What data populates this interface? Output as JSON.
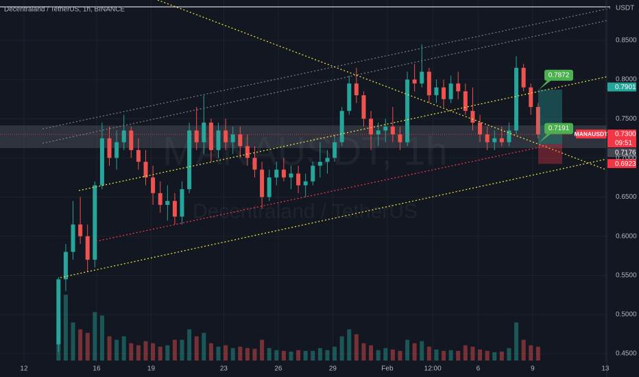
{
  "chart_data": {
    "type": "candlestick",
    "title": "Decentraland / TetherUS, 1h, BINANCE",
    "currency": "USDT",
    "watermark": {
      "symbol": "MANAUSDT, 1h",
      "description": "Decentraland / TetherUS"
    },
    "up_color": "#26a69a",
    "down_color": "#ef5350",
    "grid": true,
    "xlim": [
      10.68,
      44.08
    ],
    "xticks": [
      12,
      16,
      19,
      23,
      26,
      29,
      {
        "value": 32,
        "label": "Feb"
      },
      {
        "value": 34.5,
        "label": "12:00"
      },
      {
        "value": 37,
        "label": "6"
      },
      {
        "value": 40,
        "label": "9"
      },
      {
        "value": 44,
        "label": "13"
      }
    ],
    "ylim": [
      0.9016,
      0.4395
    ],
    "yticks": [
      {
        "value": 0.85,
        "label": "0.8500"
      },
      {
        "value": 0.8,
        "label": "0.8000"
      },
      {
        "value": 0.75,
        "label": "0.7500"
      },
      {
        "value": 0.7,
        "label": "0.7000"
      },
      {
        "value": 0.65,
        "label": "0.6500"
      },
      {
        "value": 0.6,
        "label": "0.6000"
      },
      {
        "value": 0.55,
        "label": "0.5500"
      },
      {
        "value": 0.5,
        "label": "0.5000"
      },
      {
        "value": 0.45,
        "label": "0.4500"
      }
    ],
    "x": [
      13.9,
      14.3,
      14.7,
      15.1,
      15.5,
      15.9,
      16.3,
      16.7,
      17.1,
      17.5,
      17.9,
      18.3,
      18.7,
      19.1,
      19.5,
      19.9,
      20.3,
      20.7,
      21.1,
      21.5,
      21.9,
      22.3,
      22.7,
      23.1,
      23.5,
      23.9,
      24.3,
      24.7,
      25.1,
      25.5,
      25.9,
      26.3,
      26.7,
      27.1,
      27.5,
      27.9,
      28.3,
      28.7,
      29.1,
      29.5,
      29.9,
      30.3,
      30.7,
      31.1,
      31.5,
      31.9,
      32.3,
      32.7,
      33.1,
      33.5,
      33.9,
      34.3,
      34.7,
      35.1,
      35.5,
      35.9,
      36.3,
      36.7,
      37.1,
      37.5,
      37.9,
      38.3,
      38.7,
      39.1,
      39.5,
      39.9,
      40.3
    ],
    "open": [
      0.462,
      0.545,
      0.58,
      0.615,
      0.6,
      0.57,
      0.665,
      0.725,
      0.7,
      0.72,
      0.735,
      0.71,
      0.695,
      0.675,
      0.655,
      0.64,
      0.645,
      0.625,
      0.66,
      0.735,
      0.72,
      0.745,
      0.71,
      0.735,
      0.72,
      0.73,
      0.715,
      0.7,
      0.685,
      0.65,
      0.675,
      0.685,
      0.675,
      0.68,
      0.665,
      0.67,
      0.69,
      0.695,
      0.7,
      0.72,
      0.76,
      0.795,
      0.78,
      0.75,
      0.73,
      0.735,
      0.74,
      0.73,
      0.72,
      0.8,
      0.795,
      0.81,
      0.78,
      0.79,
      0.775,
      0.795,
      0.785,
      0.76,
      0.745,
      0.73,
      0.72,
      0.725,
      0.72,
      0.735,
      0.815,
      0.79,
      0.765
    ],
    "high": [
      0.548,
      0.59,
      0.645,
      0.65,
      0.615,
      0.67,
      0.745,
      0.74,
      0.735,
      0.755,
      0.74,
      0.725,
      0.71,
      0.69,
      0.67,
      0.665,
      0.655,
      0.67,
      0.745,
      0.765,
      0.78,
      0.75,
      0.745,
      0.75,
      0.74,
      0.74,
      0.73,
      0.715,
      0.695,
      0.685,
      0.695,
      0.7,
      0.69,
      0.69,
      0.68,
      0.695,
      0.72,
      0.71,
      0.73,
      0.765,
      0.805,
      0.815,
      0.785,
      0.76,
      0.745,
      0.75,
      0.765,
      0.74,
      0.81,
      0.82,
      0.845,
      0.815,
      0.8,
      0.8,
      0.805,
      0.81,
      0.795,
      0.79,
      0.755,
      0.74,
      0.735,
      0.74,
      0.745,
      0.83,
      0.82,
      0.795,
      0.77
    ],
    "low": [
      0.452,
      0.53,
      0.57,
      0.59,
      0.555,
      0.56,
      0.66,
      0.69,
      0.685,
      0.71,
      0.7,
      0.685,
      0.665,
      0.64,
      0.63,
      0.62,
      0.615,
      0.615,
      0.655,
      0.71,
      0.705,
      0.695,
      0.7,
      0.71,
      0.705,
      0.7,
      0.69,
      0.675,
      0.635,
      0.645,
      0.665,
      0.67,
      0.66,
      0.655,
      0.65,
      0.665,
      0.675,
      0.68,
      0.695,
      0.715,
      0.755,
      0.77,
      0.74,
      0.71,
      0.715,
      0.72,
      0.72,
      0.71,
      0.715,
      0.785,
      0.79,
      0.77,
      0.77,
      0.765,
      0.77,
      0.775,
      0.755,
      0.735,
      0.72,
      0.71,
      0.71,
      0.715,
      0.715,
      0.73,
      0.785,
      0.755,
      0.725
    ],
    "close": [
      0.545,
      0.58,
      0.615,
      0.6,
      0.57,
      0.665,
      0.725,
      0.7,
      0.72,
      0.735,
      0.71,
      0.695,
      0.675,
      0.655,
      0.64,
      0.645,
      0.625,
      0.66,
      0.735,
      0.72,
      0.745,
      0.71,
      0.735,
      0.72,
      0.73,
      0.715,
      0.7,
      0.685,
      0.65,
      0.675,
      0.685,
      0.675,
      0.68,
      0.665,
      0.67,
      0.69,
      0.695,
      0.7,
      0.72,
      0.76,
      0.795,
      0.78,
      0.75,
      0.73,
      0.735,
      0.74,
      0.73,
      0.72,
      0.8,
      0.795,
      0.81,
      0.78,
      0.79,
      0.775,
      0.795,
      0.785,
      0.76,
      0.745,
      0.73,
      0.72,
      0.725,
      0.72,
      0.735,
      0.815,
      0.79,
      0.765,
      0.73
    ],
    "volume": [
      60,
      95,
      55,
      45,
      40,
      70,
      65,
      35,
      30,
      35,
      25,
      22,
      28,
      25,
      20,
      22,
      30,
      30,
      45,
      35,
      40,
      25,
      20,
      22,
      18,
      20,
      18,
      17,
      30,
      18,
      15,
      14,
      13,
      15,
      14,
      14,
      18,
      15,
      20,
      35,
      45,
      38,
      25,
      22,
      15,
      18,
      16,
      14,
      30,
      25,
      28,
      20,
      16,
      14,
      15,
      14,
      22,
      20,
      16,
      14,
      12,
      13,
      18,
      55,
      30,
      22,
      20
    ],
    "price_badges": [
      {
        "value": 0.7901,
        "label": "0.7901",
        "color": "#26a69a"
      },
      {
        "value": 0.73,
        "label": "0.7300",
        "symbol": "MANAUSDT",
        "countdown": "09:51",
        "color": "#f23645"
      },
      {
        "value": 0.7176,
        "label": "0.7176",
        "color": "#434651"
      },
      {
        "value": 0.6923,
        "label": "0.6923",
        "color": "#f23645"
      }
    ],
    "trade_labels": [
      {
        "value": 0.7872,
        "label": "0.7872"
      },
      {
        "value": 0.7191,
        "label": "0.7191"
      }
    ],
    "trade_label_color": "#4caf50"
  }
}
